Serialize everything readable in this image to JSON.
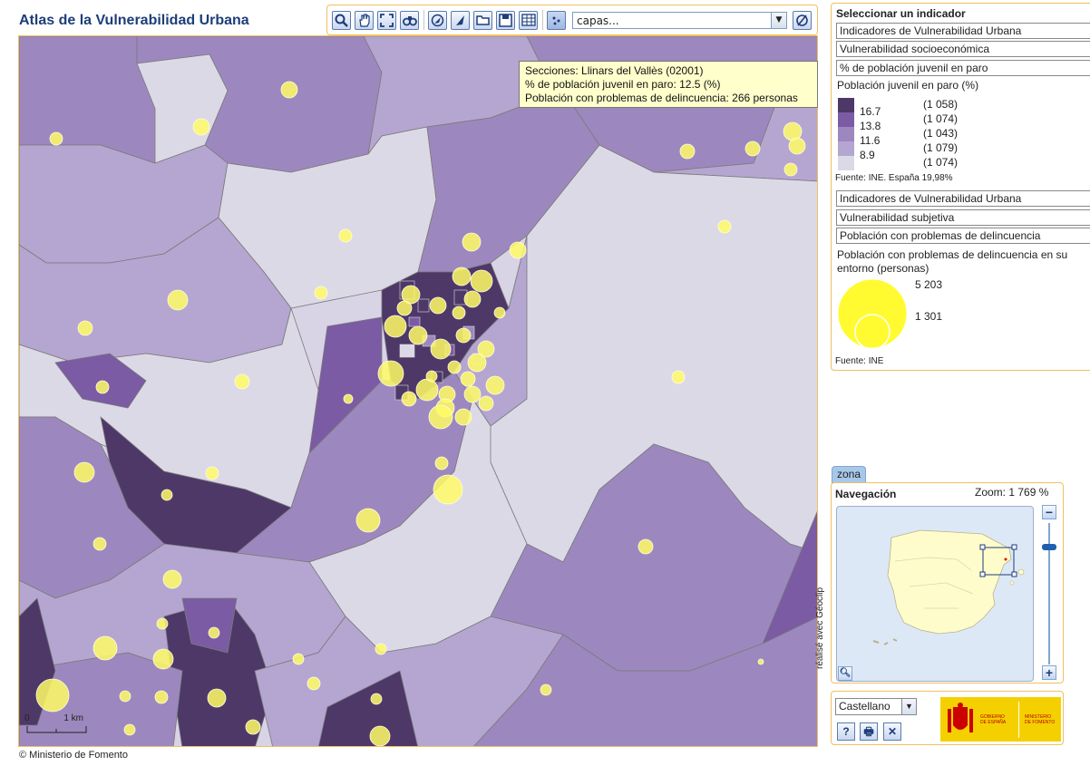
{
  "app": {
    "title": "Atlas de la Vulnerabilidad Urbana"
  },
  "toolbar": {
    "tools": [
      "search-icon",
      "pan-hand-icon",
      "full-extent-icon",
      "binoculars-icon",
      "zoom-in-icon",
      "zoom-out-icon",
      "open-folder-icon",
      "save-icon",
      "table-icon",
      "points-layer-icon"
    ],
    "layers_placeholder": "capas...",
    "clear_icon": "clear-icon"
  },
  "tooltip": {
    "line1": "Secciones: Llinars del Vallès (02001)",
    "line2": "% de población juvenil en paro: 12.5 (%)",
    "line3": "Población con problemas de delincuencia: 266  personas"
  },
  "map": {
    "scale": {
      "start": "0",
      "end": "1 km"
    },
    "colors": {
      "c1": "#4d3868",
      "c2": "#7b5ba4",
      "c3": "#9c88be",
      "c4": "#b4a6d0",
      "c5": "#dcd9e7",
      "bubble": "#fffb66"
    }
  },
  "panel": {
    "heading": "Seleccionar un indicador",
    "ind1": {
      "group": "Indicadores de Vulnerabilidad Urbana",
      "sub": "Vulnerabilidad socioeconómica",
      "name": "% de población juvenil en paro"
    },
    "legend1": {
      "title": "Población juvenil en paro (%)",
      "breaks": [
        "16.7",
        "13.8",
        "11.6",
        "8.9"
      ],
      "counts": [
        "(1 058)",
        "(1 074)",
        "(1 043)",
        "(1 079)",
        "(1 074)"
      ],
      "source": "Fuente: INE. España 19,98%"
    },
    "ind2": {
      "group": "Indicadores de Vulnerabilidad Urbana",
      "sub": "Vulnerabilidad subjetiva",
      "name": "Población con problemas de delincuencia"
    },
    "legend2": {
      "title1": "Población con problemas de delincuencia en su",
      "title2": "entorno (personas)",
      "max": "5 203",
      "min": "1 301",
      "source": "Fuente: INE"
    }
  },
  "nav": {
    "tab": "zona",
    "title": "Navegación",
    "zoom": "Zoom: 1 769 %",
    "zoom_out": "−",
    "zoom_in": "+"
  },
  "bottom": {
    "language": "Castellano",
    "help": "?",
    "print": "🖶",
    "close": "✕",
    "logo1a": "GOBIERNO",
    "logo1b": "DE ESPAÑA",
    "logo2a": "MINISTERIO",
    "logo2b": "DE FOMENTO"
  },
  "footer": {
    "copyright": "© Ministerio de Fomento",
    "credit": "réalisé avec Géoclip"
  }
}
